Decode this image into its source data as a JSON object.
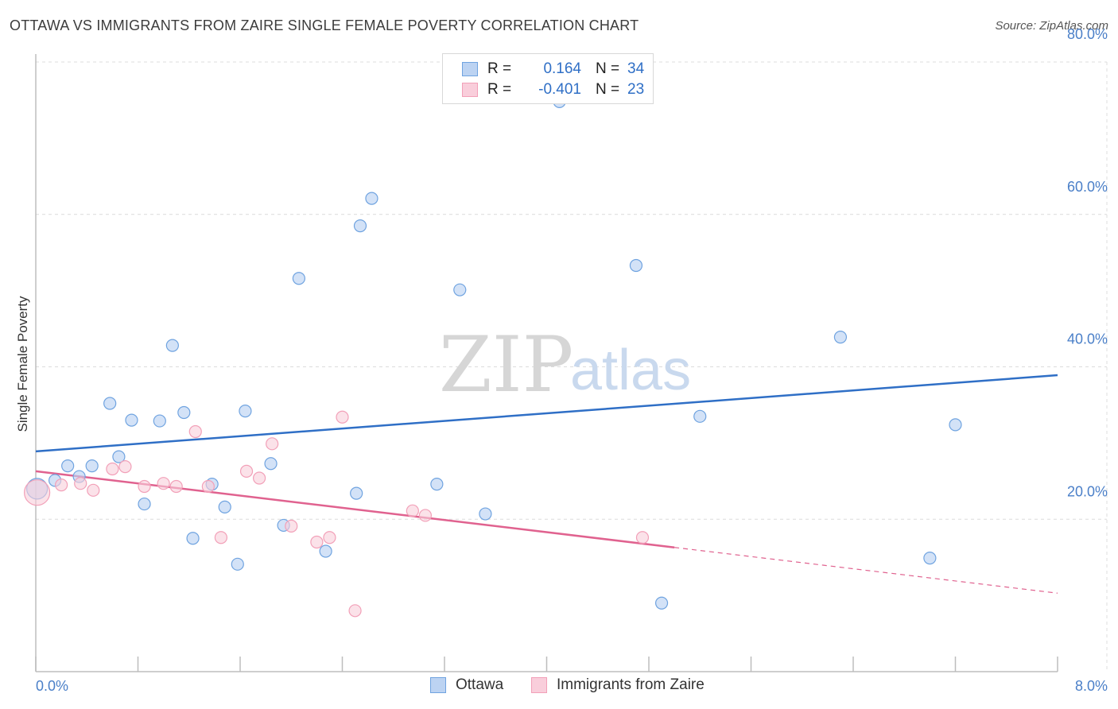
{
  "title": "OTTAWA VS IMMIGRANTS FROM ZAIRE SINGLE FEMALE POVERTY CORRELATION CHART",
  "source": "Source: ZipAtlas.com",
  "watermark": {
    "zip": "ZIP",
    "atlas": "atlas"
  },
  "legend": {
    "ottawa": {
      "r_label": "R =",
      "r_value": "0.164",
      "n_label": "N =",
      "n_value": "34"
    },
    "zaire": {
      "r_label": "R =",
      "r_value": "-0.401",
      "n_label": "N =",
      "n_value": "23"
    }
  },
  "bottom_legend": {
    "ottawa": "Ottawa",
    "zaire": "Immigrants from Zaire"
  },
  "chart_data": {
    "type": "scatter",
    "title": "OTTAWA VS IMMIGRANTS FROM ZAIRE SINGLE FEMALE POVERTY CORRELATION CHART",
    "xlabel": "",
    "ylabel": "Single Female Poverty",
    "xlim": [
      0,
      8.0
    ],
    "ylim": [
      0,
      80.0
    ],
    "x_tick_labels": [
      "0.0%",
      "8.0%"
    ],
    "y_ticks": [
      20.0,
      40.0,
      60.0,
      80.0
    ],
    "y_tick_labels": [
      "20.0%",
      "40.0%",
      "60.0%",
      "80.0%"
    ],
    "grid": true,
    "colors": {
      "ottawa": "#6fa3e0",
      "ottawa_line": "#2f6fc6",
      "zaire": "#f2a0b8",
      "zaire_line": "#e0628f",
      "tick": "#4a7fc8"
    },
    "series": [
      {
        "name": "Ottawa",
        "points": [
          [
            0.01,
            24.0
          ],
          [
            0.15,
            25.1
          ],
          [
            0.25,
            27.0
          ],
          [
            0.34,
            25.6
          ],
          [
            0.44,
            27.0
          ],
          [
            0.58,
            35.2
          ],
          [
            0.65,
            28.2
          ],
          [
            0.75,
            33.0
          ],
          [
            0.85,
            22.0
          ],
          [
            0.97,
            32.9
          ],
          [
            1.07,
            42.8
          ],
          [
            1.16,
            34.0
          ],
          [
            1.23,
            17.5
          ],
          [
            1.38,
            24.6
          ],
          [
            1.48,
            21.6
          ],
          [
            1.58,
            14.1
          ],
          [
            1.64,
            34.2
          ],
          [
            1.84,
            27.3
          ],
          [
            1.94,
            19.2
          ],
          [
            2.06,
            51.6
          ],
          [
            2.27,
            15.8
          ],
          [
            2.51,
            23.4
          ],
          [
            2.54,
            58.5
          ],
          [
            2.63,
            62.1
          ],
          [
            3.14,
            24.6
          ],
          [
            3.32,
            50.1
          ],
          [
            3.52,
            20.7
          ],
          [
            4.1,
            74.8
          ],
          [
            4.7,
            53.3
          ],
          [
            4.9,
            9.0
          ],
          [
            5.2,
            33.5
          ],
          [
            6.3,
            43.9
          ],
          [
            7.0,
            14.9
          ],
          [
            7.2,
            32.4
          ]
        ],
        "trend": {
          "x": [
            0.0,
            8.0
          ],
          "y": [
            28.9,
            38.9
          ]
        }
      },
      {
        "name": "Immigrants from Zaire",
        "points": [
          [
            0.01,
            23.5
          ],
          [
            0.2,
            24.5
          ],
          [
            0.35,
            24.7
          ],
          [
            0.45,
            23.8
          ],
          [
            0.6,
            26.6
          ],
          [
            0.7,
            26.9
          ],
          [
            0.85,
            24.3
          ],
          [
            1.0,
            24.7
          ],
          [
            1.1,
            24.3
          ],
          [
            1.25,
            31.5
          ],
          [
            1.35,
            24.3
          ],
          [
            1.45,
            17.6
          ],
          [
            1.65,
            26.3
          ],
          [
            1.75,
            25.4
          ],
          [
            1.85,
            29.9
          ],
          [
            2.0,
            19.1
          ],
          [
            2.2,
            17.0
          ],
          [
            2.3,
            17.6
          ],
          [
            2.4,
            33.4
          ],
          [
            2.5,
            8.0
          ],
          [
            2.95,
            21.1
          ],
          [
            3.05,
            20.5
          ],
          [
            4.75,
            17.6
          ]
        ],
        "trend": {
          "x": [
            0.0,
            5.0
          ],
          "y": [
            26.3,
            16.3
          ]
        },
        "trend_dashed": {
          "x": [
            5.0,
            8.0
          ],
          "y": [
            16.3,
            10.3
          ]
        }
      }
    ]
  }
}
